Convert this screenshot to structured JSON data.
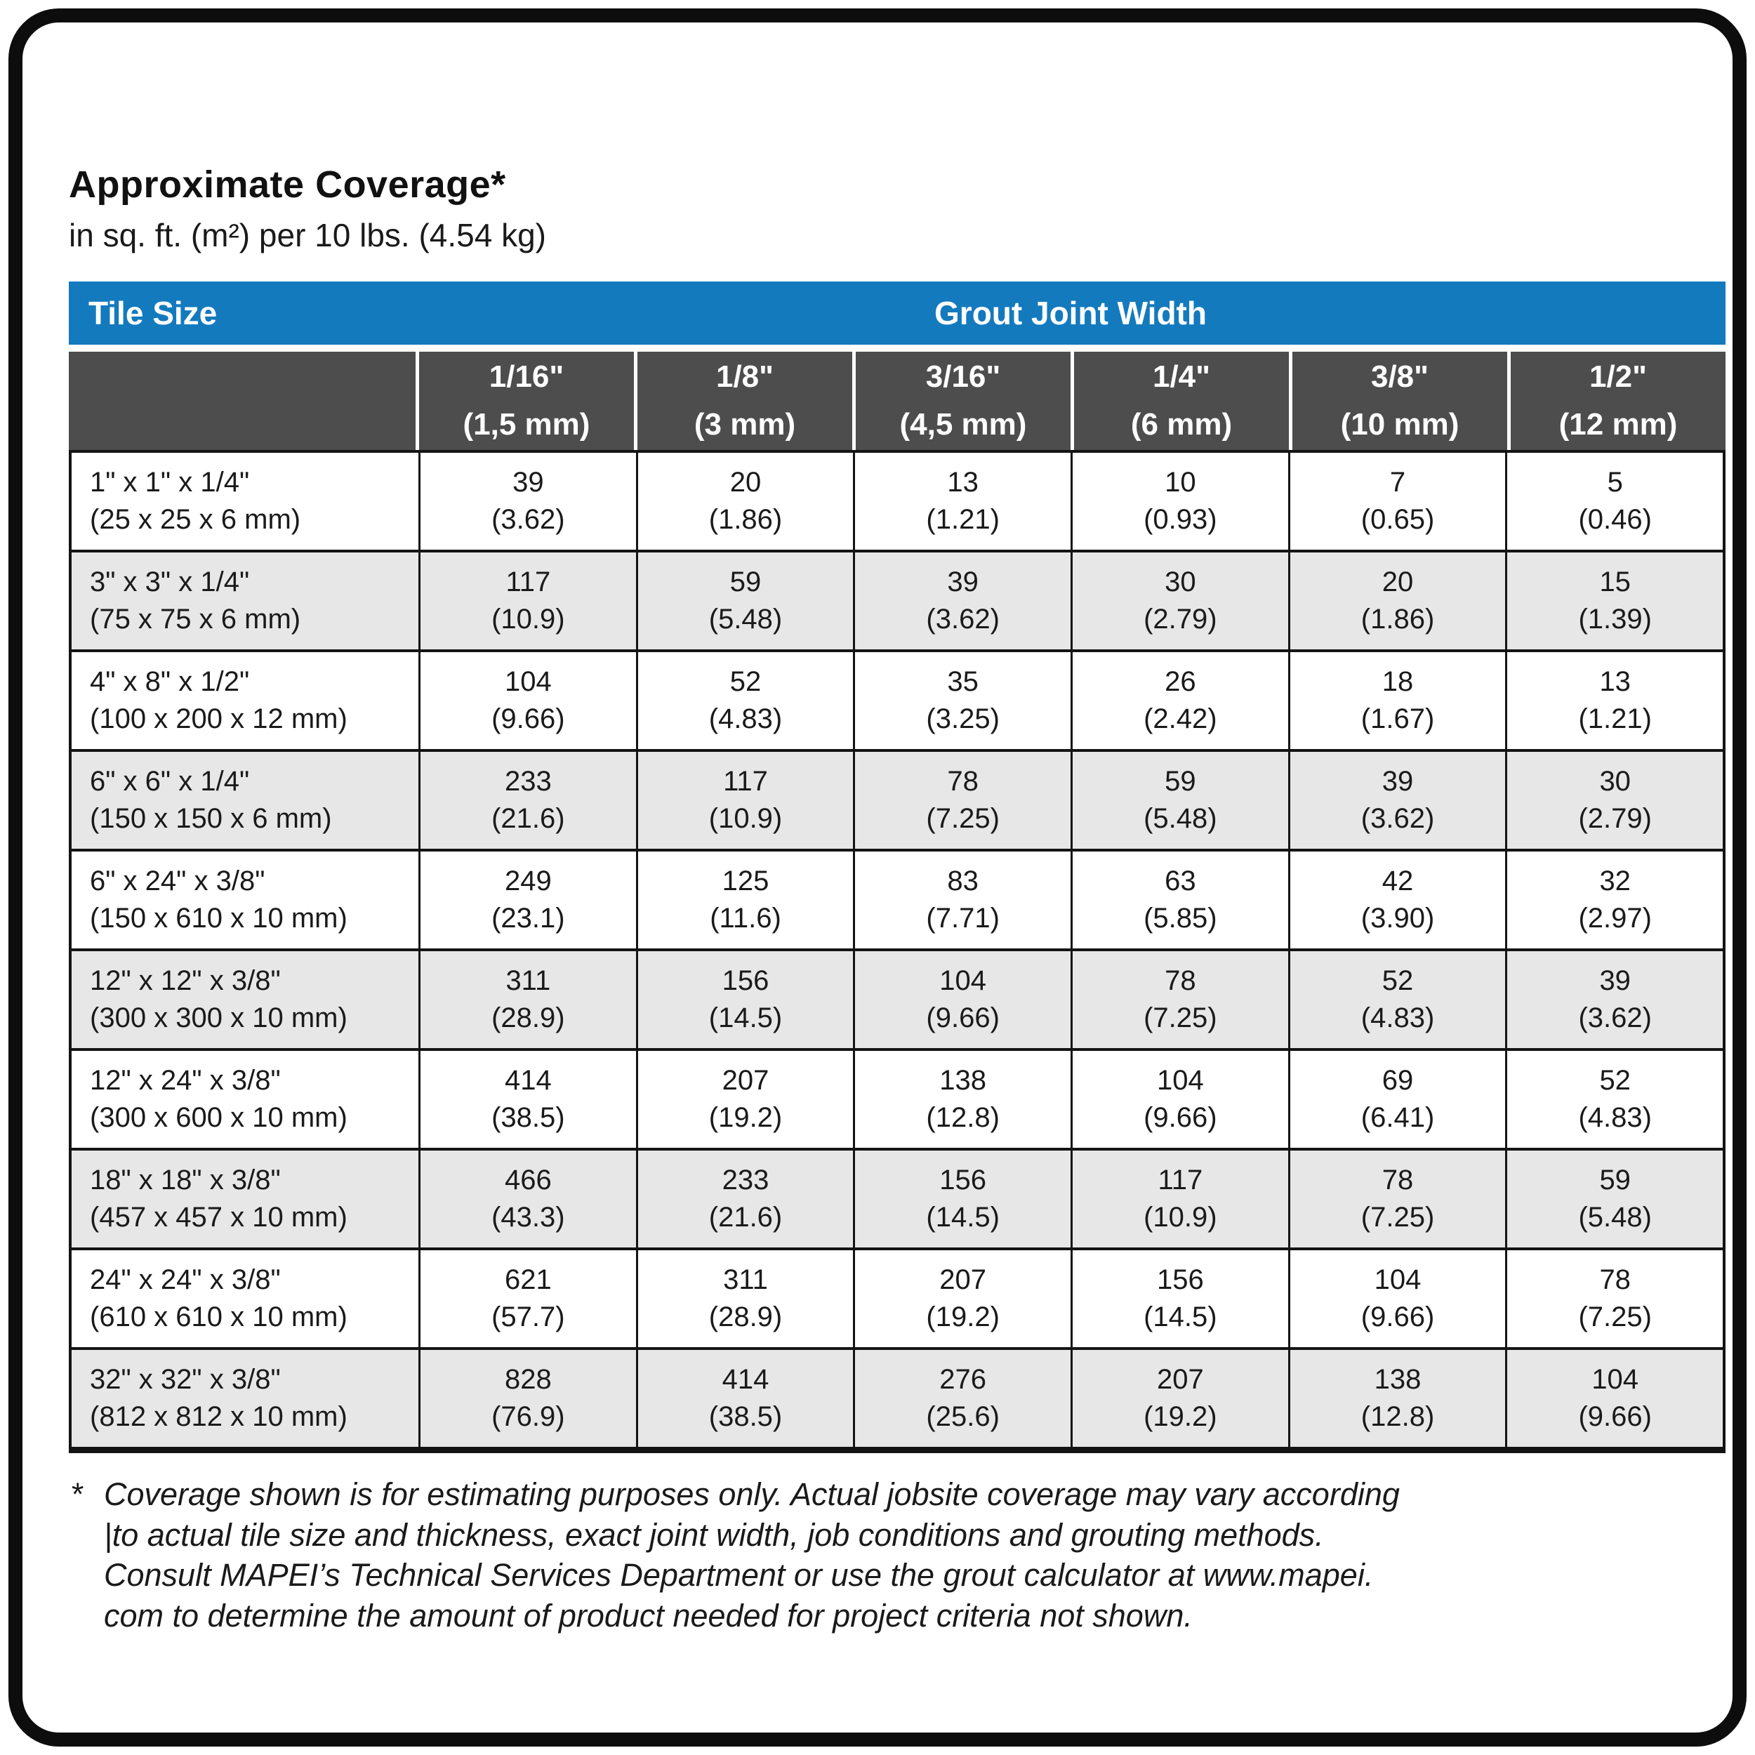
{
  "page": {
    "title": "Approximate Coverage*",
    "subtitle": "in sq. ft. (m²) per 10 lbs. (4.54 kg)"
  },
  "colors": {
    "header_blue": "#147abe",
    "subheader_gray": "#4d4d4d",
    "shaded_row_gray": "#e7e7e7",
    "border_black": "#141414",
    "text_black": "#1a1a1a"
  },
  "table": {
    "tile_size_label": "Tile Size",
    "grout_joint_width_label": "Grout Joint Width",
    "columns": [
      {
        "inch": "1/16\"",
        "metric": "(1,5 mm)"
      },
      {
        "inch": "1/8\"",
        "metric": "(3 mm)"
      },
      {
        "inch": "3/16\"",
        "metric": "(4,5 mm)"
      },
      {
        "inch": "1/4\"",
        "metric": "(6 mm)"
      },
      {
        "inch": "3/8\"",
        "metric": "(10 mm)"
      },
      {
        "inch": "1/2\"",
        "metric": "(12 mm)"
      }
    ],
    "rows": [
      {
        "size_in": "1\" x 1\" x 1/4\"",
        "size_mm": "(25 x 25 x 6 mm)",
        "values": [
          [
            "39",
            "(3.62)"
          ],
          [
            "20",
            "(1.86)"
          ],
          [
            "13",
            "(1.21)"
          ],
          [
            "10",
            "(0.93)"
          ],
          [
            "7",
            "(0.65)"
          ],
          [
            "5",
            "(0.46)"
          ]
        ]
      },
      {
        "size_in": "3\" x 3\" x 1/4\"",
        "size_mm": "(75 x 75 x 6 mm)",
        "values": [
          [
            "117",
            "(10.9)"
          ],
          [
            "59",
            "(5.48)"
          ],
          [
            "39",
            "(3.62)"
          ],
          [
            "30",
            "(2.79)"
          ],
          [
            "20",
            "(1.86)"
          ],
          [
            "15",
            "(1.39)"
          ]
        ]
      },
      {
        "size_in": "4\" x 8\" x 1/2\"",
        "size_mm": "(100 x 200 x 12 mm)",
        "values": [
          [
            "104",
            "(9.66)"
          ],
          [
            "52",
            "(4.83)"
          ],
          [
            "35",
            "(3.25)"
          ],
          [
            "26",
            "(2.42)"
          ],
          [
            "18",
            "(1.67)"
          ],
          [
            "13",
            "(1.21)"
          ]
        ]
      },
      {
        "size_in": "6\" x 6\" x 1/4\"",
        "size_mm": "(150 x 150 x 6 mm)",
        "values": [
          [
            "233",
            "(21.6)"
          ],
          [
            "117",
            "(10.9)"
          ],
          [
            "78",
            "(7.25)"
          ],
          [
            "59",
            "(5.48)"
          ],
          [
            "39",
            "(3.62)"
          ],
          [
            "30",
            "(2.79)"
          ]
        ]
      },
      {
        "size_in": "6\" x 24\" x 3/8\"",
        "size_mm": "(150 x 610 x 10 mm)",
        "values": [
          [
            "249",
            "(23.1)"
          ],
          [
            "125",
            "(11.6)"
          ],
          [
            "83",
            "(7.71)"
          ],
          [
            "63",
            "(5.85)"
          ],
          [
            "42",
            "(3.90)"
          ],
          [
            "32",
            "(2.97)"
          ]
        ]
      },
      {
        "size_in": "12\" x 12\" x 3/8\"",
        "size_mm": "(300 x 300 x 10 mm)",
        "values": [
          [
            "311",
            "(28.9)"
          ],
          [
            "156",
            "(14.5)"
          ],
          [
            "104",
            "(9.66)"
          ],
          [
            "78",
            "(7.25)"
          ],
          [
            "52",
            "(4.83)"
          ],
          [
            "39",
            "(3.62)"
          ]
        ]
      },
      {
        "size_in": "12\" x 24\" x 3/8\"",
        "size_mm": "(300 x 600 x 10 mm)",
        "values": [
          [
            "414",
            "(38.5)"
          ],
          [
            "207",
            "(19.2)"
          ],
          [
            "138",
            "(12.8)"
          ],
          [
            "104",
            "(9.66)"
          ],
          [
            "69",
            "(6.41)"
          ],
          [
            "52",
            "(4.83)"
          ]
        ]
      },
      {
        "size_in": "18\" x 18\" x 3/8\"",
        "size_mm": "(457 x 457 x 10 mm)",
        "values": [
          [
            "466",
            "(43.3)"
          ],
          [
            "233",
            "(21.6)"
          ],
          [
            "156",
            "(14.5)"
          ],
          [
            "117",
            "(10.9)"
          ],
          [
            "78",
            "(7.25)"
          ],
          [
            "59",
            "(5.48)"
          ]
        ]
      },
      {
        "size_in": "24\" x 24\" x 3/8\"",
        "size_mm": "(610 x 610 x 10 mm)",
        "values": [
          [
            "621",
            "(57.7)"
          ],
          [
            "311",
            "(28.9)"
          ],
          [
            "207",
            "(19.2)"
          ],
          [
            "156",
            "(14.5)"
          ],
          [
            "104",
            "(9.66)"
          ],
          [
            "78",
            "(7.25)"
          ]
        ]
      },
      {
        "size_in": "32\" x 32\" x 3/8\"",
        "size_mm": "(812 x 812 x 10 mm)",
        "values": [
          [
            "828",
            "(76.9)"
          ],
          [
            "414",
            "(38.5)"
          ],
          [
            "276",
            "(25.6)"
          ],
          [
            "207",
            "(19.2)"
          ],
          [
            "138",
            "(12.8)"
          ],
          [
            "104",
            "(9.66)"
          ]
        ]
      }
    ]
  },
  "footnote": {
    "marker": "*",
    "lines": [
      "Coverage shown is for estimating purposes only. Actual jobsite coverage may vary according",
      "|to actual tile size and thickness, exact joint width, job conditions and grouting methods.",
      "Consult MAPEI’s Technical Services Department or use the grout calculator at www.mapei.",
      "com to determine the amount of product needed for project criteria not shown."
    ]
  }
}
